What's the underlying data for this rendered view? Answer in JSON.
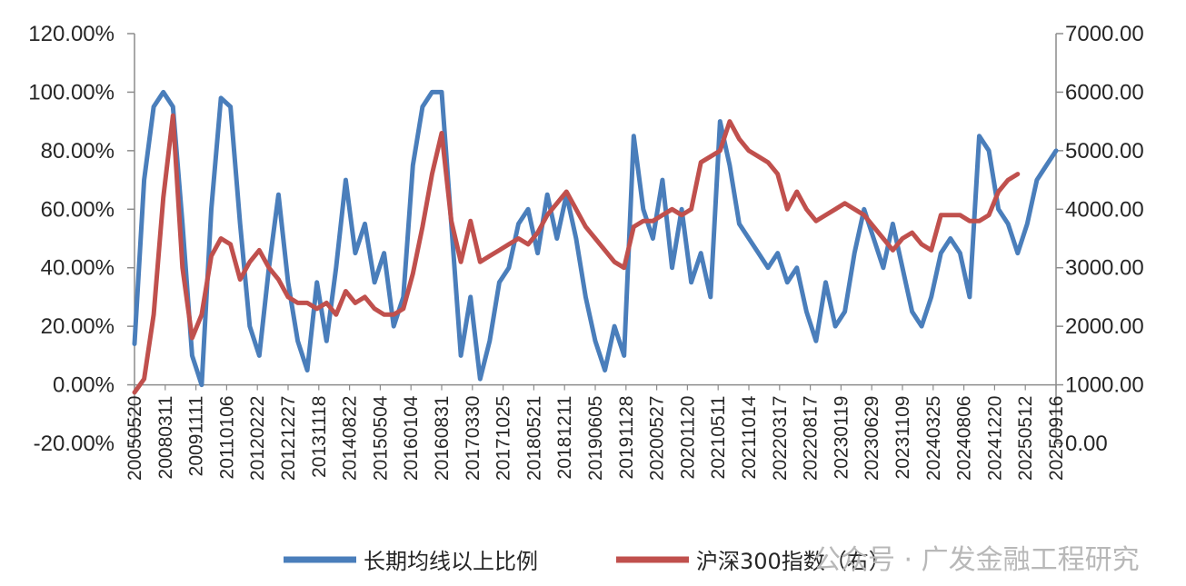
{
  "chart_data": {
    "type": "line",
    "title": "",
    "xlabel": "",
    "ylabel_left": "",
    "ylabel_right": "",
    "x_tick_labels": [
      "20050520",
      "20080311",
      "20091111",
      "20110106",
      "20120222",
      "20121227",
      "20131118",
      "20140822",
      "20150504",
      "20160104",
      "20160831",
      "20170330",
      "20171025",
      "20180521",
      "20181211",
      "20190605",
      "20191128",
      "20200527",
      "20201120",
      "20210511",
      "20211014",
      "20220317",
      "20220817",
      "20230119",
      "20230629",
      "20231109",
      "20240325",
      "20240806",
      "20241220",
      "20250512",
      "20250916"
    ],
    "y_left": {
      "min": -0.2,
      "max": 1.2,
      "step": 0.2,
      "tick_labels": [
        "120.00%",
        "100.00%",
        "80.00%",
        "60.00%",
        "40.00%",
        "20.00%",
        "0.00%",
        "-20.00%"
      ]
    },
    "y_right": {
      "min": 0,
      "max": 7000,
      "step": 1000,
      "tick_labels": [
        "7000.00",
        "6000.00",
        "5000.00",
        "4000.00",
        "3000.00",
        "2000.00",
        "1000.00",
        "0.00"
      ]
    },
    "series": [
      {
        "name": "长期均线以上比例",
        "axis": "left",
        "color": "#4a7ebb",
        "points": [
          [
            0,
            0.14
          ],
          [
            1,
            0.7
          ],
          [
            2,
            0.95
          ],
          [
            3,
            1.0
          ],
          [
            4,
            0.95
          ],
          [
            5,
            0.55
          ],
          [
            6,
            0.1
          ],
          [
            7,
            0.0
          ],
          [
            8,
            0.6
          ],
          [
            9,
            0.98
          ],
          [
            10,
            0.95
          ],
          [
            11,
            0.55
          ],
          [
            12,
            0.2
          ],
          [
            13,
            0.1
          ],
          [
            14,
            0.4
          ],
          [
            15,
            0.65
          ],
          [
            16,
            0.35
          ],
          [
            17,
            0.15
          ],
          [
            18,
            0.05
          ],
          [
            19,
            0.35
          ],
          [
            20,
            0.15
          ],
          [
            21,
            0.4
          ],
          [
            22,
            0.7
          ],
          [
            23,
            0.45
          ],
          [
            24,
            0.55
          ],
          [
            25,
            0.35
          ],
          [
            26,
            0.45
          ],
          [
            27,
            0.2
          ],
          [
            28,
            0.3
          ],
          [
            29,
            0.75
          ],
          [
            30,
            0.95
          ],
          [
            31,
            1.0
          ],
          [
            32,
            1.0
          ],
          [
            33,
            0.55
          ],
          [
            34,
            0.1
          ],
          [
            35,
            0.3
          ],
          [
            36,
            0.02
          ],
          [
            37,
            0.15
          ],
          [
            38,
            0.35
          ],
          [
            39,
            0.4
          ],
          [
            40,
            0.55
          ],
          [
            41,
            0.6
          ],
          [
            42,
            0.45
          ],
          [
            43,
            0.65
          ],
          [
            44,
            0.5
          ],
          [
            45,
            0.65
          ],
          [
            46,
            0.5
          ],
          [
            47,
            0.3
          ],
          [
            48,
            0.15
          ],
          [
            49,
            0.05
          ],
          [
            50,
            0.2
          ],
          [
            51,
            0.1
          ],
          [
            52,
            0.85
          ],
          [
            53,
            0.6
          ],
          [
            54,
            0.5
          ],
          [
            55,
            0.7
          ],
          [
            56,
            0.4
          ],
          [
            57,
            0.6
          ],
          [
            58,
            0.35
          ],
          [
            59,
            0.45
          ],
          [
            60,
            0.3
          ],
          [
            61,
            0.9
          ],
          [
            62,
            0.75
          ],
          [
            63,
            0.55
          ],
          [
            64,
            0.5
          ],
          [
            65,
            0.45
          ],
          [
            66,
            0.4
          ],
          [
            67,
            0.45
          ],
          [
            68,
            0.35
          ],
          [
            69,
            0.4
          ],
          [
            70,
            0.25
          ],
          [
            71,
            0.15
          ],
          [
            72,
            0.35
          ],
          [
            73,
            0.2
          ],
          [
            74,
            0.25
          ],
          [
            75,
            0.45
          ],
          [
            76,
            0.6
          ],
          [
            77,
            0.5
          ],
          [
            78,
            0.4
          ],
          [
            79,
            0.55
          ],
          [
            80,
            0.4
          ],
          [
            81,
            0.25
          ],
          [
            82,
            0.2
          ],
          [
            83,
            0.3
          ],
          [
            84,
            0.45
          ],
          [
            85,
            0.5
          ],
          [
            86,
            0.45
          ],
          [
            87,
            0.3
          ],
          [
            88,
            0.85
          ],
          [
            89,
            0.8
          ],
          [
            90,
            0.6
          ],
          [
            91,
            0.55
          ],
          [
            92,
            0.45
          ],
          [
            93,
            0.55
          ],
          [
            94,
            0.7
          ],
          [
            95,
            0.75
          ],
          [
            96,
            0.8
          ]
        ]
      },
      {
        "name": "沪深300指数（右）",
        "axis": "right",
        "color": "#c0504d",
        "points": [
          [
            0,
            870
          ],
          [
            1,
            1100
          ],
          [
            2,
            2200
          ],
          [
            3,
            4200
          ],
          [
            4,
            5600
          ],
          [
            5,
            3000
          ],
          [
            6,
            1800
          ],
          [
            7,
            2200
          ],
          [
            8,
            3200
          ],
          [
            9,
            3500
          ],
          [
            10,
            3400
          ],
          [
            11,
            2800
          ],
          [
            12,
            3100
          ],
          [
            13,
            3300
          ],
          [
            14,
            3000
          ],
          [
            15,
            2800
          ],
          [
            16,
            2500
          ],
          [
            17,
            2400
          ],
          [
            18,
            2400
          ],
          [
            19,
            2300
          ],
          [
            20,
            2400
          ],
          [
            21,
            2200
          ],
          [
            22,
            2600
          ],
          [
            23,
            2400
          ],
          [
            24,
            2500
          ],
          [
            25,
            2300
          ],
          [
            26,
            2200
          ],
          [
            27,
            2200
          ],
          [
            28,
            2300
          ],
          [
            29,
            2900
          ],
          [
            30,
            3700
          ],
          [
            31,
            4600
          ],
          [
            32,
            5300
          ],
          [
            33,
            3800
          ],
          [
            34,
            3100
          ],
          [
            35,
            3800
          ],
          [
            36,
            3100
          ],
          [
            37,
            3200
          ],
          [
            38,
            3300
          ],
          [
            39,
            3400
          ],
          [
            40,
            3500
          ],
          [
            41,
            3400
          ],
          [
            42,
            3600
          ],
          [
            43,
            3900
          ],
          [
            44,
            4100
          ],
          [
            45,
            4300
          ],
          [
            46,
            4000
          ],
          [
            47,
            3700
          ],
          [
            48,
            3500
          ],
          [
            49,
            3300
          ],
          [
            50,
            3100
          ],
          [
            51,
            3000
          ],
          [
            52,
            3700
          ],
          [
            53,
            3800
          ],
          [
            54,
            3800
          ],
          [
            55,
            3900
          ],
          [
            56,
            4000
          ],
          [
            57,
            3900
          ],
          [
            58,
            4000
          ],
          [
            59,
            4800
          ],
          [
            60,
            4900
          ],
          [
            61,
            5000
          ],
          [
            62,
            5500
          ],
          [
            63,
            5200
          ],
          [
            64,
            5000
          ],
          [
            65,
            4900
          ],
          [
            66,
            4800
          ],
          [
            67,
            4600
          ],
          [
            68,
            4000
          ],
          [
            69,
            4300
          ],
          [
            70,
            4000
          ],
          [
            71,
            3800
          ],
          [
            72,
            3900
          ],
          [
            73,
            4000
          ],
          [
            74,
            4100
          ],
          [
            75,
            4000
          ],
          [
            76,
            3900
          ],
          [
            77,
            3700
          ],
          [
            78,
            3500
          ],
          [
            79,
            3300
          ],
          [
            80,
            3500
          ],
          [
            81,
            3600
          ],
          [
            82,
            3400
          ],
          [
            83,
            3300
          ],
          [
            84,
            3900
          ],
          [
            85,
            3900
          ],
          [
            86,
            3900
          ],
          [
            87,
            3800
          ],
          [
            88,
            3800
          ],
          [
            89,
            3900
          ],
          [
            90,
            4300
          ],
          [
            91,
            4500
          ],
          [
            92,
            4600
          ]
        ]
      }
    ],
    "legend": {
      "placement": "bottom-center",
      "entries": [
        "长期均线以上比例",
        "沪深300指数（右）"
      ]
    },
    "grid": false
  },
  "watermark_text": "公众号 · 广发金融工程研究"
}
